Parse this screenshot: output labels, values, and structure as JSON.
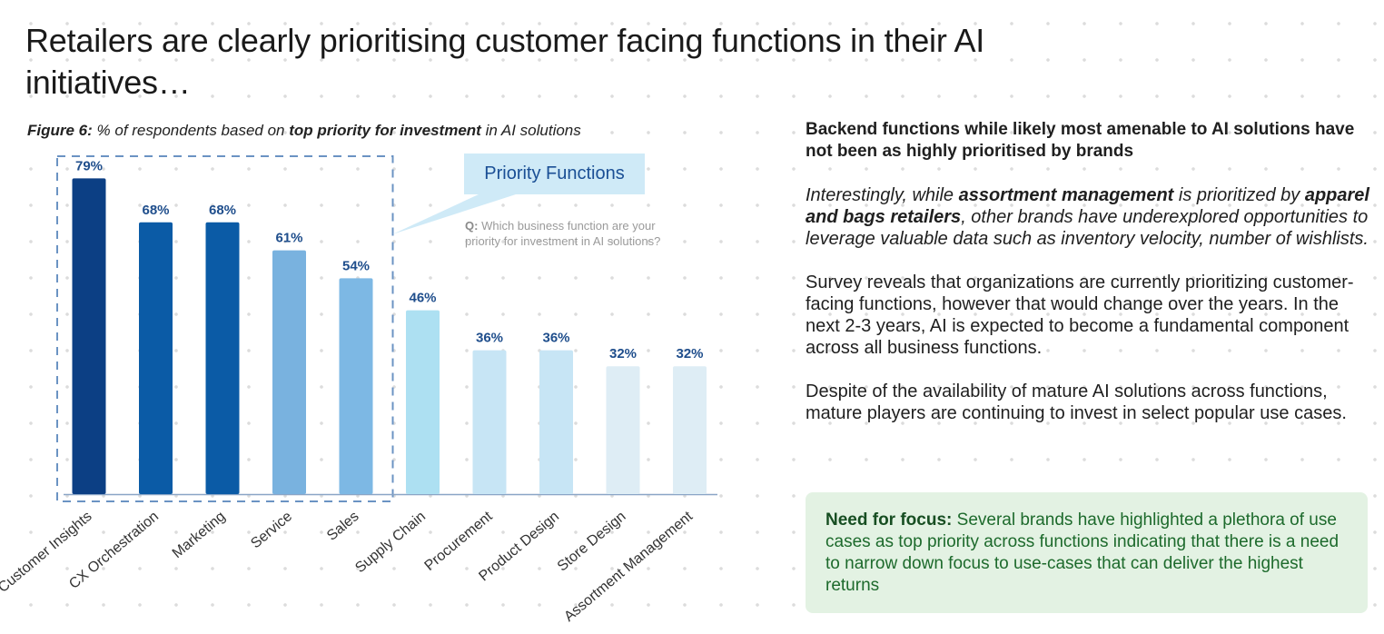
{
  "headline": "Retailers are clearly prioritising customer facing functions in their AI initiatives…",
  "figure": {
    "label": "Figure 6:",
    "caption_pre": "% of respondents based on",
    "caption_bold": "top priority for investment",
    "caption_post": "in AI solutions"
  },
  "callout": {
    "title": "Priority Functions",
    "question_label": "Q:",
    "question_text": "Which business function are your priority for investment in AI solutions?"
  },
  "chart_data": {
    "type": "bar",
    "title": "",
    "xlabel": "",
    "ylabel": "",
    "ylim": [
      0,
      100
    ],
    "categories": [
      "Customer Insights",
      "CX Orchestration",
      "Marketing",
      "Service",
      "Sales",
      "Supply Chain",
      "Procurement",
      "Product Design",
      "Store Design",
      "Assortment Management"
    ],
    "values": [
      79,
      68,
      68,
      61,
      54,
      46,
      36,
      36,
      32,
      32
    ],
    "value_labels": [
      "79%",
      "68%",
      "68%",
      "61%",
      "54%",
      "46%",
      "36%",
      "36%",
      "32%",
      "32%"
    ],
    "bar_colors": [
      "#0c3f84",
      "#0b5ba6",
      "#0b5ba6",
      "#79b2df",
      "#7db8e4",
      "#ade0f2",
      "#c7e5f5",
      "#c7e5f5",
      "#deedf5",
      "#deedf5"
    ],
    "label_color": "#1f4e8c",
    "highlight_group": [
      "Customer Insights",
      "CX Orchestration",
      "Marketing",
      "Service",
      "Sales"
    ],
    "grid": false
  },
  "right": {
    "subhead": "Backend functions while likely most amenable to AI solutions have not been as highly prioritised by brands",
    "p1_a": "Interestingly, while ",
    "p1_b": "assortment management",
    "p1_c": " is prioritized by ",
    "p1_d": "apparel and bags retailers",
    "p1_e": ", other brands have underexplored opportunities to leverage valuable data such as inventory velocity, number of wishlists.",
    "p2": "Survey reveals that organizations are currently prioritizing customer-facing functions, however that would change over the years. In the next 2-3 years, AI is expected to become a fundamental component across all business functions.",
    "p3": "Despite of the availability of mature AI solutions across functions, mature players are continuing to invest in select popular use cases."
  },
  "focus": {
    "label": "Need for focus:",
    "text": "Several brands have highlighted a plethora of use cases as top priority across functions indicating that there is a need to narrow down focus to use-cases that can deliver the highest returns"
  }
}
